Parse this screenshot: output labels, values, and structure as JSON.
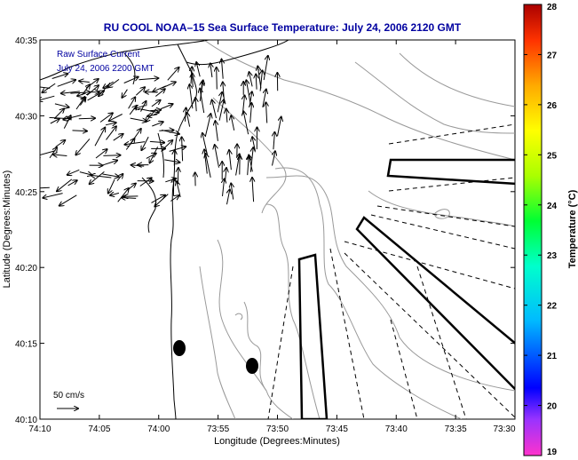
{
  "title": "RU COOL  NOAA–15  Sea Surface Temperature:  July 24, 2006 2120 GMT",
  "overlay": {
    "line1": "Raw Surface Current",
    "line2": "July 24, 2006 2200 GMT"
  },
  "scale_label": "50 cm/s",
  "xlabel": "Longitude (Degrees:Minutes)",
  "ylabel": "Latitude (Degrees:Minutes)",
  "x_ticks": [
    "74:10",
    "74:05",
    "74:00",
    "73:55",
    "73:50",
    "73:45",
    "73:40",
    "73:35",
    "73:30"
  ],
  "y_ticks": [
    "40:35",
    "40:30",
    "40:25",
    "40:20",
    "40:15",
    "40:10"
  ],
  "colorbar": {
    "label": "Temperature (°C)",
    "min": 19,
    "max": 28,
    "ticks": [
      "28",
      "27",
      "26",
      "25",
      "24",
      "23",
      "22",
      "21",
      "20",
      "19"
    ]
  },
  "colors": {
    "title": "#0000a0",
    "overlay": "#0000a0",
    "coast": "#000000",
    "contour": "#999999"
  }
}
